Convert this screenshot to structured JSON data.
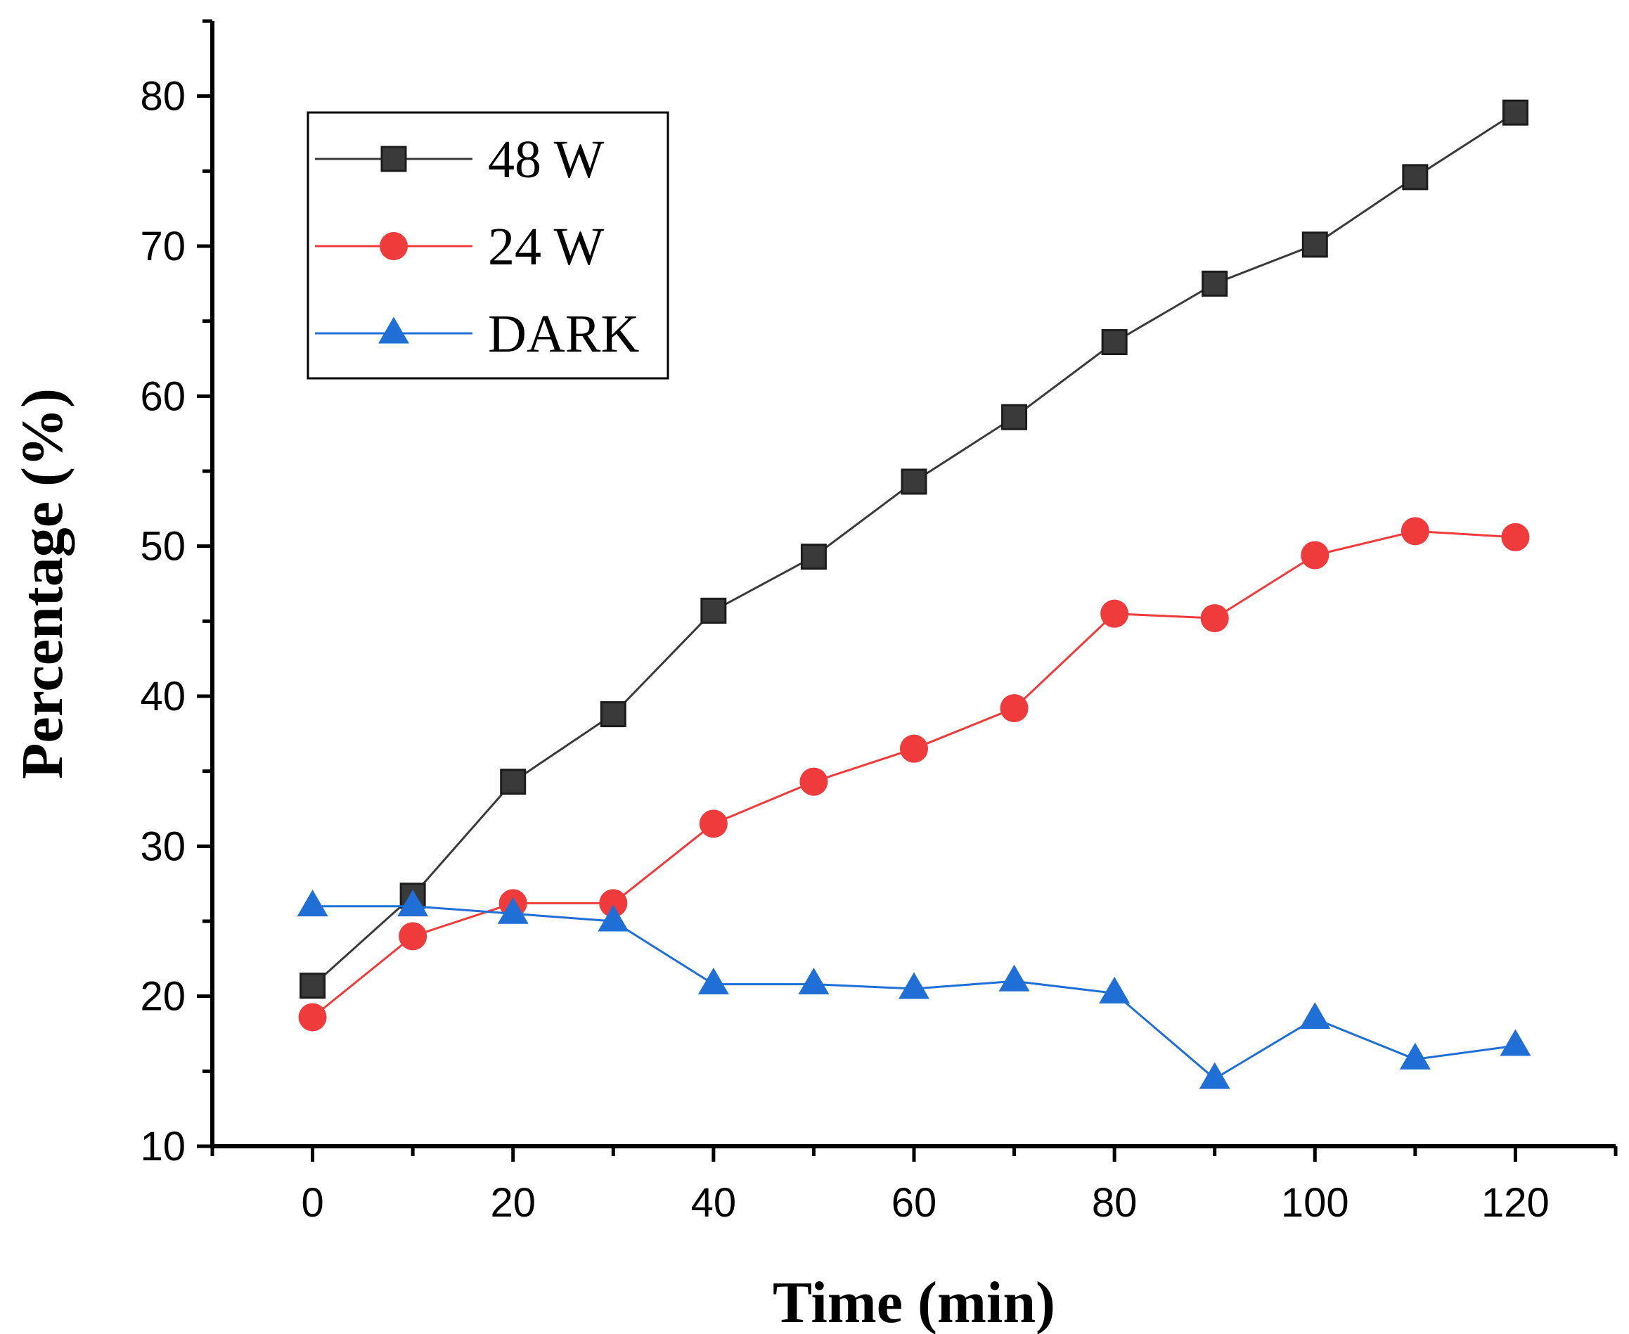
{
  "chart_data": {
    "type": "line",
    "title": "",
    "xlabel": "Time (min)",
    "ylabel": "Percentage (%)",
    "xlim": [
      -10,
      130
    ],
    "ylim": [
      10,
      85
    ],
    "x_ticks": [
      0,
      20,
      40,
      60,
      80,
      100,
      120
    ],
    "y_ticks": [
      10,
      20,
      30,
      40,
      50,
      60,
      70,
      80
    ],
    "grid": false,
    "legend_position": "top-left",
    "x": [
      0,
      10,
      20,
      30,
      40,
      50,
      60,
      70,
      80,
      90,
      100,
      110,
      120
    ],
    "series": [
      {
        "name": "48 W",
        "color": "#3a3a3a",
        "marker": "square",
        "values": [
          20.7,
          26.7,
          34.3,
          38.8,
          45.7,
          49.3,
          54.3,
          58.6,
          63.6,
          67.5,
          70.1,
          74.6,
          78.9
        ]
      },
      {
        "name": "24 W",
        "color": "#ef3b3b",
        "marker": "circle",
        "values": [
          18.6,
          24.0,
          26.2,
          26.2,
          31.5,
          34.3,
          36.5,
          39.2,
          45.5,
          45.2,
          49.4,
          51.0,
          50.6
        ]
      },
      {
        "name": "DARK",
        "color": "#1f6fd6",
        "marker": "triangle",
        "values": [
          26.0,
          26.0,
          25.5,
          25.0,
          20.8,
          20.8,
          20.5,
          21.0,
          20.2,
          14.5,
          18.5,
          15.8,
          16.7
        ]
      }
    ]
  }
}
